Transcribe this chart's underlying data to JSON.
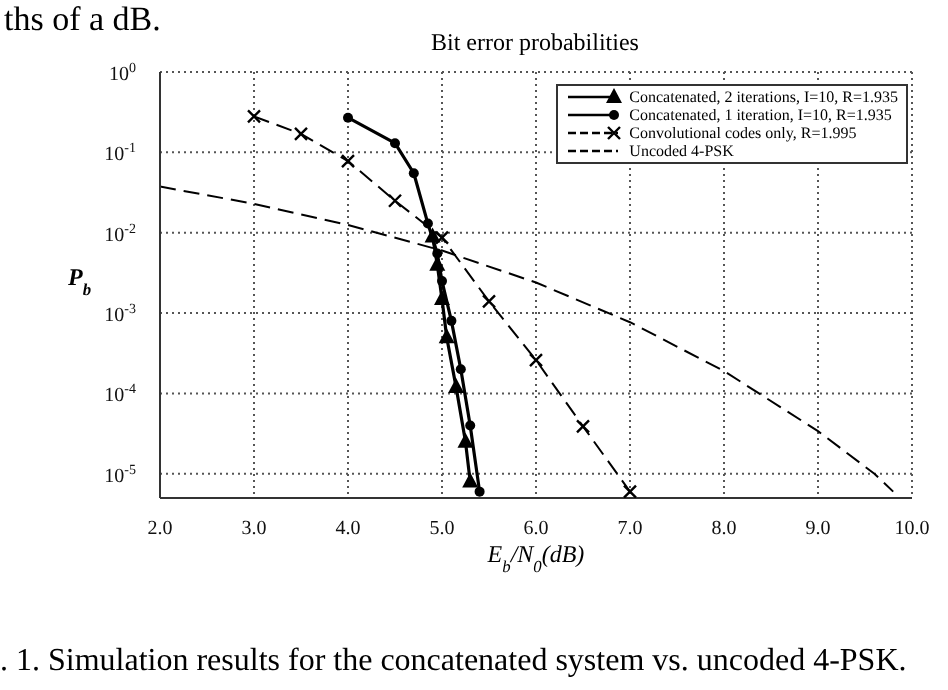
{
  "chart_data": {
    "type": "line",
    "title": "Bit error probabilities",
    "xlabel": "E$_{b}$/N$_{0}$(dB)",
    "ylabel": "P$_{b}$",
    "annotations": [
      "ths of a dB.",
      ". 1. Simulation results for the concatenated system vs. uncoded 4-PSK."
    ],
    "log": "y",
    "grid": true,
    "legend": "top right",
    "xlim": [
      2,
      10
    ],
    "xticks": [
      {
        "value": 2,
        "label": "2.0"
      },
      {
        "value": 3,
        "label": "3.0"
      },
      {
        "value": 4,
        "label": "4.0"
      },
      {
        "value": 5,
        "label": "5.0"
      },
      {
        "value": 6,
        "label": "6.0"
      },
      {
        "value": 7,
        "label": "7.0"
      },
      {
        "value": 8,
        "label": "8.0"
      },
      {
        "value": 9,
        "label": "9.0"
      },
      {
        "value": 10,
        "label": "10.0"
      }
    ],
    "ylim": [
      5e-06,
      1
    ],
    "yticks": [
      {
        "value": 1,
        "label": "10$^{0}$"
      },
      {
        "value": 0.1,
        "label": "10$^{-1}$"
      },
      {
        "value": 0.01,
        "label": "10$^{-2}$"
      },
      {
        "value": 0.001,
        "label": "10$^{-3}$"
      },
      {
        "value": 0.0001,
        "label": "10$^{-4}$"
      },
      {
        "value": 1e-05,
        "label": "10$^{-5}$"
      }
    ],
    "series": [
      {
        "name": "Concatenated, 2 iterations, I=10, R=1.935",
        "color": "#000000",
        "marker": "triangle",
        "line_style": "solid",
        "x": [
          4.9,
          4.95,
          5.0,
          5.05,
          5.15,
          5.25,
          5.3
        ],
        "values": [
          0.009,
          0.004,
          0.0015,
          0.0005,
          0.00012,
          2.5e-05,
          8e-06
        ]
      },
      {
        "name": "Concatenated, 1 iteration, I=10, R=1.935",
        "color": "#000000",
        "marker": "circle",
        "line_style": "solid",
        "x": [
          4.0,
          4.5,
          4.7,
          4.85,
          4.95,
          5.0,
          5.1,
          5.2,
          5.3,
          5.4
        ],
        "values": [
          0.27,
          0.13,
          0.055,
          0.013,
          0.0055,
          0.0025,
          0.0008,
          0.0002,
          4e-05,
          6e-06
        ]
      },
      {
        "name": "Convolutional codes only, R=1.995",
        "color": "#000000",
        "marker": "cross",
        "line_style": "dashed",
        "x": [
          3.0,
          3.5,
          4.0,
          4.5,
          5.0,
          5.5,
          6.0,
          6.5,
          7.0
        ],
        "values": [
          0.28,
          0.17,
          0.078,
          0.025,
          0.0087,
          0.0014,
          0.00026,
          3.9e-05,
          6e-06
        ]
      },
      {
        "name": "Uncoded 4-PSK",
        "color": "#000000",
        "marker": "none",
        "line_style": "dashed",
        "x": [
          2,
          3,
          4,
          5,
          6,
          7,
          8,
          9,
          9.6,
          9.8
        ],
        "values": [
          0.0375,
          0.0229,
          0.0125,
          0.006,
          0.0024,
          0.00077,
          0.00019,
          3.4e-05,
          1e-05,
          6e-06
        ]
      }
    ]
  }
}
